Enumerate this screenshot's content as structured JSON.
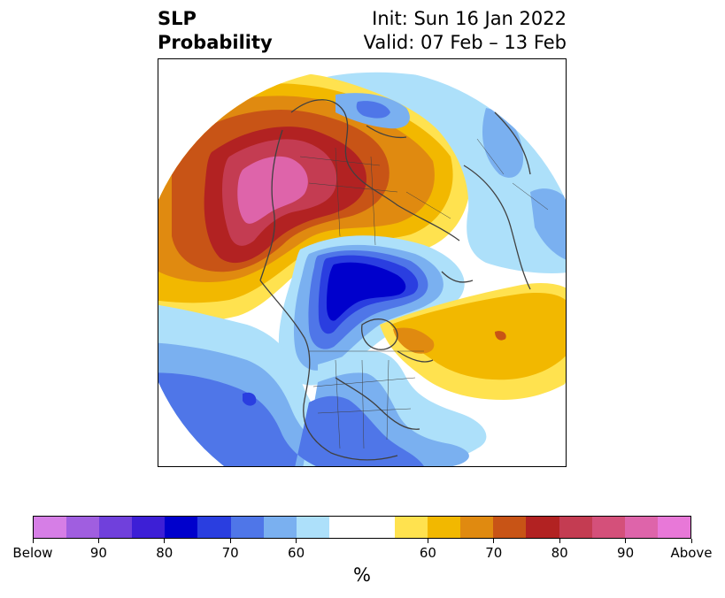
{
  "title": {
    "left_line1": "SLP",
    "left_line2": "Probability",
    "right_line1": "Init: Sun 16 Jan 2022",
    "right_line2": "Valid: 07 Feb – 13 Feb"
  },
  "colorbar": {
    "unit": "%",
    "segments": [
      "#d67ee6",
      "#a05ee0",
      "#7040dc",
      "#3d1fd6",
      "#0000cc",
      "#2a3ee0",
      "#4f76e8",
      "#7ab0f0",
      "#ade0fa",
      "#ffffff",
      "#ffffff",
      "#ffe24f",
      "#f2b800",
      "#e08a10",
      "#c85416",
      "#b22222",
      "#c43c52",
      "#d4507a",
      "#de64aa",
      "#e878d8"
    ],
    "tick_labels": [
      {
        "text": "Below",
        "index": 0
      },
      {
        "text": "90",
        "index": 2
      },
      {
        "text": "80",
        "index": 4
      },
      {
        "text": "70",
        "index": 6
      },
      {
        "text": "60",
        "index": 8
      },
      {
        "text": "60",
        "index": 12
      },
      {
        "text": "70",
        "index": 14
      },
      {
        "text": "80",
        "index": 16
      },
      {
        "text": "90",
        "index": 18
      },
      {
        "text": "Above",
        "index": 20
      }
    ]
  },
  "map": {
    "projection": "north-polar-stereographic",
    "fill_colors": {
      "above_90": "#de64aa",
      "above_80": "#c43c52",
      "above_70": "#b22222",
      "above_65": "#c85416",
      "above_60": "#e08a10",
      "above_55": "#f2b800",
      "above_50": "#ffe24f",
      "below_50": "#ade0fa",
      "below_55": "#7ab0f0",
      "below_60": "#4f76e8",
      "below_70": "#2a3ee0",
      "below_80": "#0000cc",
      "neutral": "#ffffff",
      "coast": "#404040"
    }
  }
}
